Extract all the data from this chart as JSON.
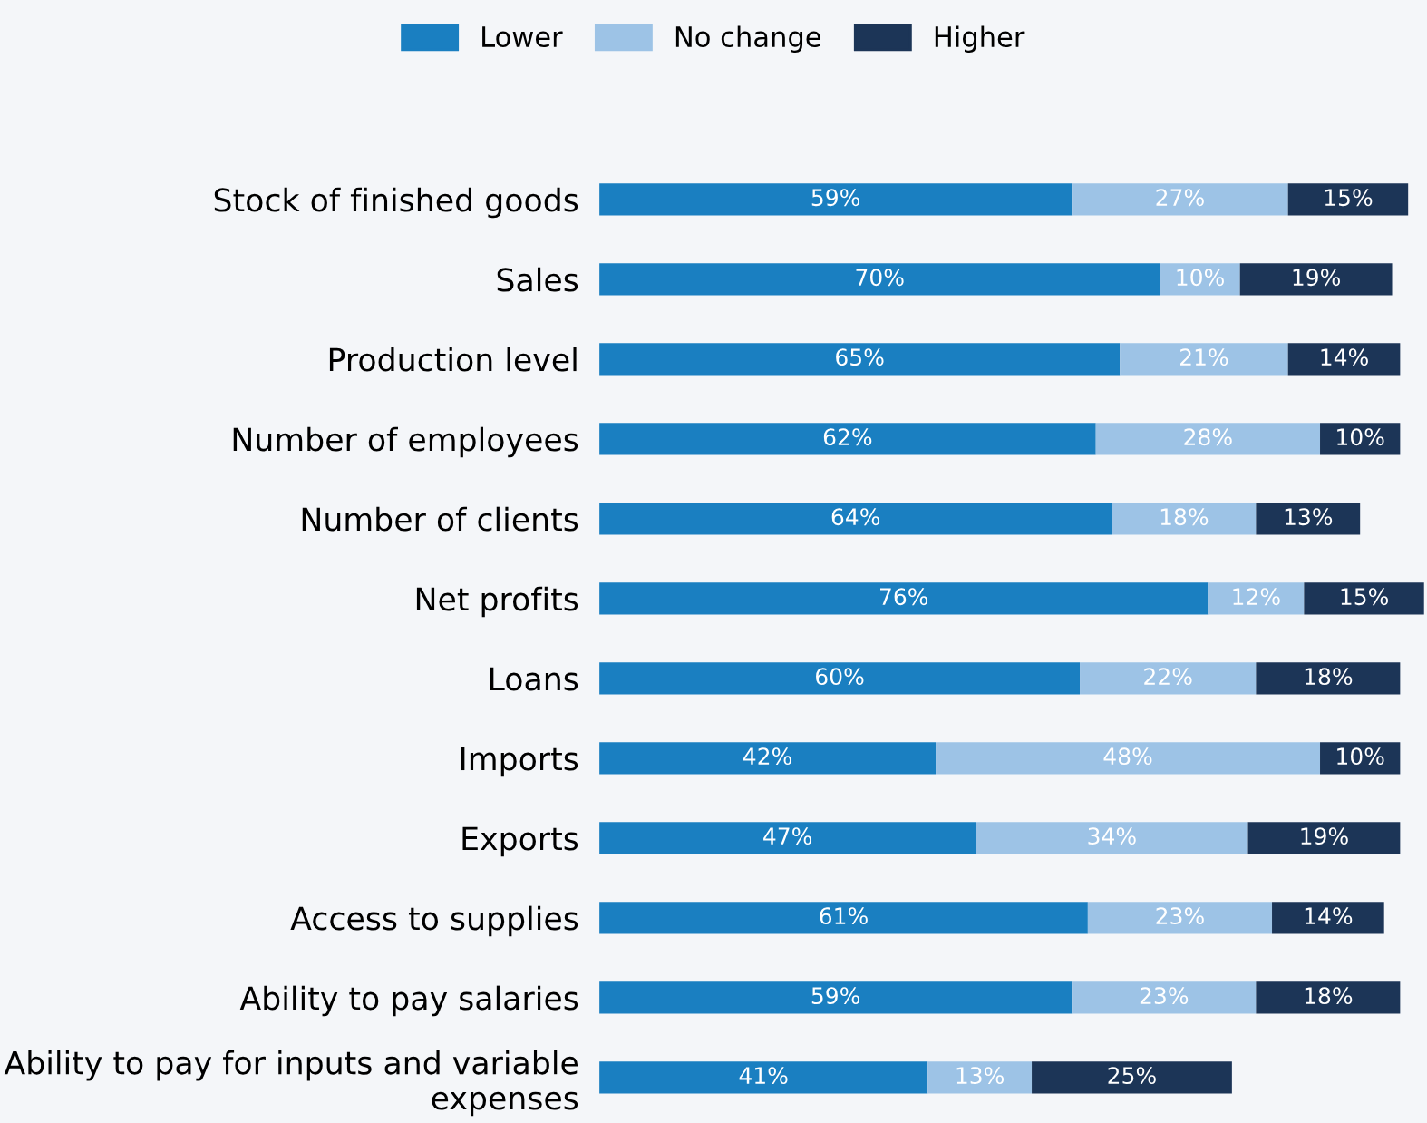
{
  "chart_data": {
    "type": "bar",
    "orientation": "horizontal",
    "stacked": true,
    "legend": "top",
    "categories": [
      "Stock of finished goods",
      "Sales",
      "Production level",
      "Number of employees",
      "Number of clients",
      "Net profits",
      "Loans",
      "Imports",
      "Exports",
      "Access to supplies",
      "Ability to pay salaries",
      "Ability to pay for inputs and variable\nexpenses"
    ],
    "series": [
      {
        "name": "Lower",
        "color": "#1a7fc1",
        "values": [
          59,
          70,
          65,
          62,
          64,
          76,
          60,
          42,
          47,
          61,
          59,
          41
        ],
        "value_labels": [
          "59%",
          "70%",
          "65%",
          "62%",
          "64%",
          "76%",
          "60%",
          "42%",
          "47%",
          "61%",
          "59%",
          "41%"
        ]
      },
      {
        "name": "No change",
        "color": "#9dc3e6",
        "values": [
          27,
          10,
          21,
          28,
          18,
          12,
          22,
          48,
          34,
          23,
          23,
          13
        ],
        "value_labels": [
          "27%",
          "10%",
          "21%",
          "28%",
          "18%",
          "12%",
          "22%",
          "48%",
          "34%",
          "23%",
          "23%",
          "13%"
        ]
      },
      {
        "name": "Higher",
        "color": "#1c3557",
        "values": [
          15,
          19,
          14,
          10,
          13,
          15,
          18,
          10,
          19,
          14,
          18,
          25
        ],
        "value_labels": [
          "15%",
          "19%",
          "14%",
          "10%",
          "13%",
          "15%",
          "18%",
          "10%",
          "19%",
          "14%",
          "18%",
          "25%"
        ]
      }
    ]
  }
}
